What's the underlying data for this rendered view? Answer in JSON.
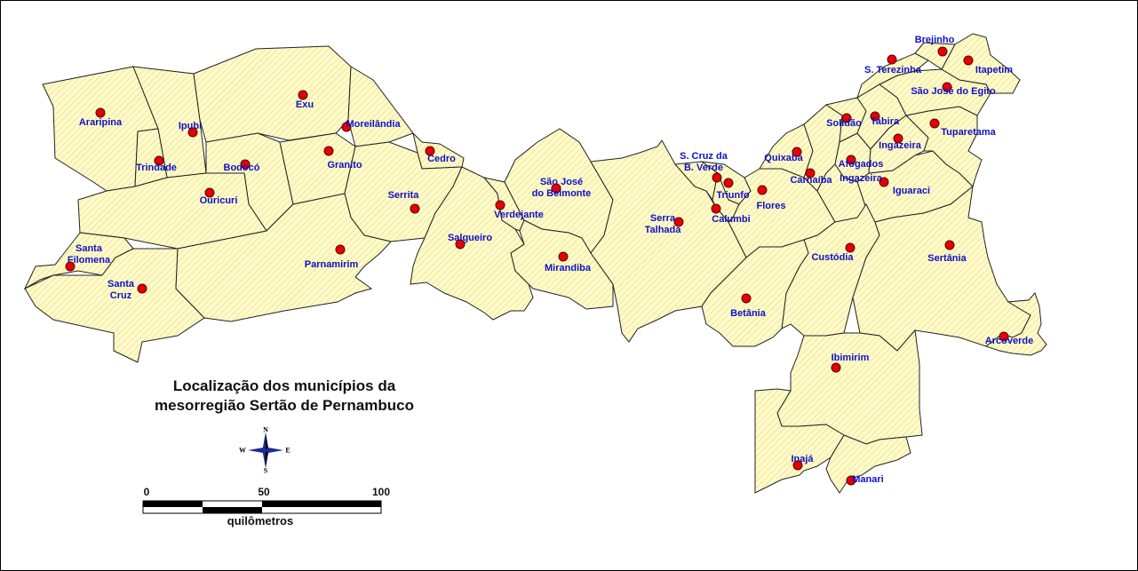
{
  "title": {
    "line1": "Localização dos municípios da",
    "line2": "mesorregião Sertão de Pernambuco"
  },
  "fill_color": "#fffbc8",
  "hatch_color": "#e0d890",
  "seat_color": "#e60000",
  "label_color": "#1010c8",
  "compass": {
    "n": "N",
    "s": "S",
    "e": "E",
    "w": "W",
    "icon": "compass-rose-icon"
  },
  "scale": {
    "ticks": [
      "0",
      "50",
      "100"
    ],
    "units": "quilômetros"
  },
  "municipalities": [
    "Araripina",
    "Ipubi",
    "Trindade",
    "Bodocó",
    "Ouricuri",
    "Exu",
    "Moreilândia",
    "Granito",
    "Cedro",
    "Serrita",
    "Santa Filomena",
    "Santa Cruz",
    "Parnamirim",
    "Salgueiro",
    "Verdejante",
    "São José do Belmonte",
    "Mirandiba",
    "Serra Talhada",
    "S. Cruz da B. Verde",
    "Triunfo",
    "Calumbi",
    "Flores",
    "Quixaba",
    "Carnaíba",
    "Afogados",
    "Ingazeira",
    "Iguaraci",
    "Solidão",
    "Tabira",
    "Ingazeira",
    "Tuparetama",
    "São José do Egito",
    "Itapetim",
    "S. Terezinha",
    "Brejinho",
    "Custódia",
    "Sertânia",
    "Betânia",
    "Arcoverde",
    "Ibimirim",
    "Inajá",
    "Manari"
  ],
  "labels": {
    "araripina": "Araripina",
    "ipubi": "Ipubi",
    "trindade": "Trindade",
    "bodoco": "Bodocó",
    "ouricuri": "Ouricuri",
    "exu": "Exu",
    "moreilandia": "Moreilândia",
    "granito": "Granito",
    "cedro": "Cedro",
    "serrita": "Serrita",
    "santa_filomena": "Santa\nFilomena",
    "santa_cruz": "Santa\nCruz",
    "parnamirim": "Parnamirim",
    "salgueiro": "Salgueiro",
    "verdejante": "Verdejante",
    "sao_jose_belmonte": "São José\ndo Belmonte",
    "mirandiba": "Mirandiba",
    "serra_talhada": "Serra\nTalhada",
    "santa_cruz_bv": "S. Cruz da\nB. Verde",
    "triunfo": "Triunfo",
    "calumbi": "Calumbi",
    "flores": "Flores",
    "quixaba": "Quixaba",
    "carnaiba": "Carnaíba",
    "afogados": "Afogados",
    "ingazeira_afogados": "Ingazeira",
    "iguaraci": "Iguaraci",
    "solidao": "Solidão",
    "tabira": "Tabira",
    "ingazeira": "Ingazeira",
    "tuparetama": "Tuparetama",
    "sao_jose_egito": "São José do Egito",
    "itapetim": "Itapetim",
    "s_terezinha": "S. Terezinha",
    "brejinho": "Brejinho",
    "custodia": "Custódia",
    "sertania": "Sertânia",
    "betania": "Betânia",
    "arcoverde": "Arcoverde",
    "ibimirim": "Ibimirim",
    "inaja": "Inajá",
    "manari": "Manari"
  }
}
